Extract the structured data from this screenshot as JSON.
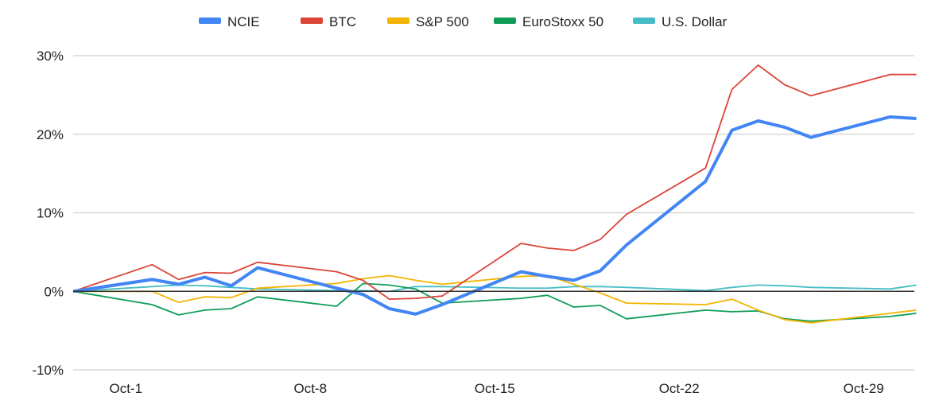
{
  "chart_data": {
    "type": "line",
    "title": "",
    "xlabel": "",
    "ylabel": "",
    "ylim": [
      -10,
      30
    ],
    "y_ticks": [
      "-10%",
      "0%",
      "10%",
      "20%",
      "30%"
    ],
    "y_tick_values": [
      -10,
      0,
      10,
      20,
      30
    ],
    "x_ticks": [
      "Oct-1",
      "Oct-8",
      "Oct-15",
      "Oct-22",
      "Oct-29"
    ],
    "grid": true,
    "legend": "top",
    "x": [
      "Sep-29",
      "Oct-2",
      "Oct-3",
      "Oct-4",
      "Oct-5",
      "Oct-6",
      "Oct-9",
      "Oct-10",
      "Oct-11",
      "Oct-12",
      "Oct-13",
      "Oct-16",
      "Oct-17",
      "Oct-18",
      "Oct-19",
      "Oct-20",
      "Oct-23",
      "Oct-24",
      "Oct-25",
      "Oct-26",
      "Oct-27",
      "Oct-30",
      "Oct-31"
    ],
    "series": [
      {
        "name": "NCIE",
        "color": "#4285F4",
        "values": [
          0,
          1.5,
          0.9,
          1.8,
          0.7,
          3.0,
          0.4,
          -0.4,
          -2.2,
          -2.9,
          -1.7,
          2.5,
          1.9,
          1.4,
          2.6,
          5.9,
          14.0,
          20.5,
          21.7,
          20.9,
          19.6,
          22.2,
          22.0
        ]
      },
      {
        "name": "BTC",
        "color": "#DB4437",
        "values": [
          0,
          3.4,
          1.5,
          2.4,
          2.3,
          3.7,
          2.5,
          1.4,
          -1.0,
          -0.9,
          -0.6,
          6.1,
          5.5,
          5.2,
          6.6,
          9.8,
          15.7,
          25.7,
          28.8,
          26.3,
          24.9,
          27.6,
          27.6
        ]
      },
      {
        "name": "S&P 500",
        "color": "#F4B400",
        "values": [
          0,
          0,
          -1.4,
          -0.7,
          -0.8,
          0.4,
          1.0,
          1.6,
          2.0,
          1.4,
          0.9,
          1.9,
          2.0,
          0.9,
          -0.2,
          -1.5,
          -1.7,
          -1.0,
          -2.4,
          -3.6,
          -4.0,
          -2.8,
          -2.4
        ]
      },
      {
        "name": "EuroStoxx 50",
        "color": "#0F9D58",
        "values": [
          0,
          -1.7,
          -3.0,
          -2.4,
          -2.2,
          -0.7,
          -1.9,
          1.0,
          0.8,
          0.3,
          -1.5,
          -0.9,
          -0.5,
          -2.0,
          -1.8,
          -3.5,
          -2.4,
          -2.6,
          -2.5,
          -3.5,
          -3.8,
          -3.2,
          -2.8
        ]
      },
      {
        "name": "U.S. Dollar",
        "color": "#46BDC6",
        "values": [
          0,
          0.6,
          0.8,
          0.7,
          0.5,
          0.3,
          0.1,
          0.1,
          0.0,
          0.6,
          0.6,
          0.4,
          0.4,
          0.6,
          0.6,
          0.5,
          0.1,
          0.5,
          0.8,
          0.7,
          0.5,
          0.3,
          0.8
        ]
      }
    ]
  }
}
